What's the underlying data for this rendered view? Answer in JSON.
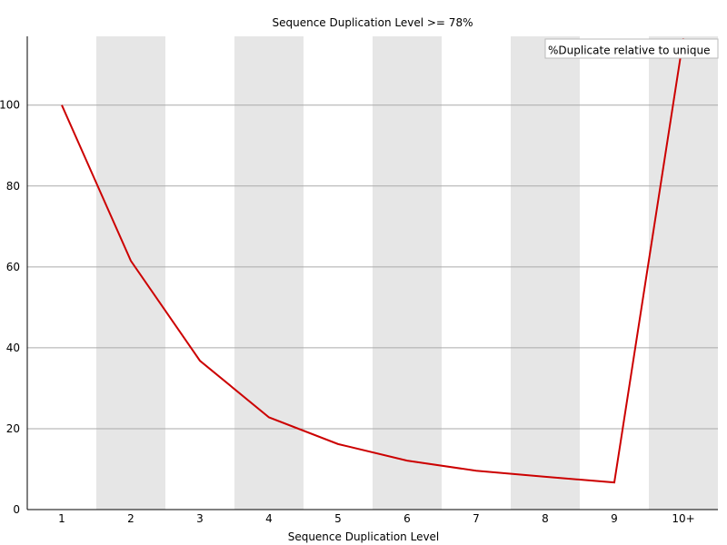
{
  "chart_data": {
    "type": "line",
    "title": "Sequence Duplication Level >= 78%",
    "xlabel": "Sequence Duplication Level",
    "ylabel": "",
    "categories": [
      "1",
      "2",
      "3",
      "4",
      "5",
      "6",
      "7",
      "8",
      "9",
      "10+"
    ],
    "series": [
      {
        "name": "%Duplicate relative to unique",
        "color": "#cc0000",
        "values": [
          100,
          61.5,
          36.8,
          22.8,
          16.2,
          12.1,
          9.6,
          8.1,
          6.7,
          116.5
        ]
      }
    ],
    "ylim": [
      0,
      117
    ],
    "yticks": [
      0,
      20,
      40,
      60,
      80,
      100
    ],
    "grid": true,
    "legend": "top-right",
    "band_color": "#e6e6e6",
    "grid_color": "#aaaaaa"
  }
}
